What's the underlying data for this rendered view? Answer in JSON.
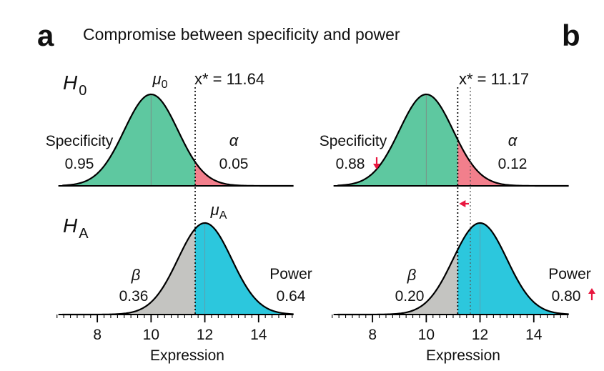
{
  "figure": {
    "title": "Compromise between specificity and power",
    "panel_labels": [
      "a",
      "b"
    ],
    "colors": {
      "specificity": "#5ec8a0",
      "alpha": "#f27f8c",
      "beta": "#c4c4c1",
      "power": "#2cc7dd",
      "arrow": "#e8173f",
      "curve": "#000000"
    }
  },
  "chart_data": [
    {
      "type": "area",
      "panel": "a",
      "xlabel": "Expression",
      "x_ticks": [
        "8",
        "10",
        "12",
        "14"
      ],
      "xlim": [
        6.4,
        15.6
      ],
      "distribution": "normal",
      "h0": {
        "label": "H",
        "sub": "0",
        "mean": 10,
        "mean_label": "μ",
        "mean_sub": "0",
        "sd": 1
      },
      "ha": {
        "label": "H",
        "sub": "A",
        "mean": 12,
        "mean_label": "μ",
        "mean_sub": "A",
        "sd": 1
      },
      "threshold": {
        "label": "x* = 11.64",
        "value": 11.64
      },
      "specificity": {
        "label": "Specificity",
        "value": "0.95"
      },
      "alpha": {
        "label": "α",
        "value": "0.05"
      },
      "beta": {
        "label": "β",
        "value": "0.36"
      },
      "power": {
        "label": "Power",
        "value": "0.64"
      }
    },
    {
      "type": "area",
      "panel": "b",
      "xlabel": "Expression",
      "x_ticks": [
        "8",
        "10",
        "12",
        "14"
      ],
      "xlim": [
        6.4,
        15.6
      ],
      "distribution": "normal",
      "h0": {
        "mean": 10,
        "sd": 1
      },
      "ha": {
        "mean": 12,
        "sd": 1
      },
      "threshold": {
        "label": "x* = 11.17",
        "value": 11.17,
        "previous_value": 11.64
      },
      "specificity": {
        "label": "Specificity",
        "value": "0.88",
        "change": "down"
      },
      "alpha": {
        "label": "α",
        "value": "0.12"
      },
      "beta": {
        "label": "β",
        "value": "0.20"
      },
      "power": {
        "label": "Power",
        "value": "0.80",
        "change": "up"
      }
    }
  ]
}
